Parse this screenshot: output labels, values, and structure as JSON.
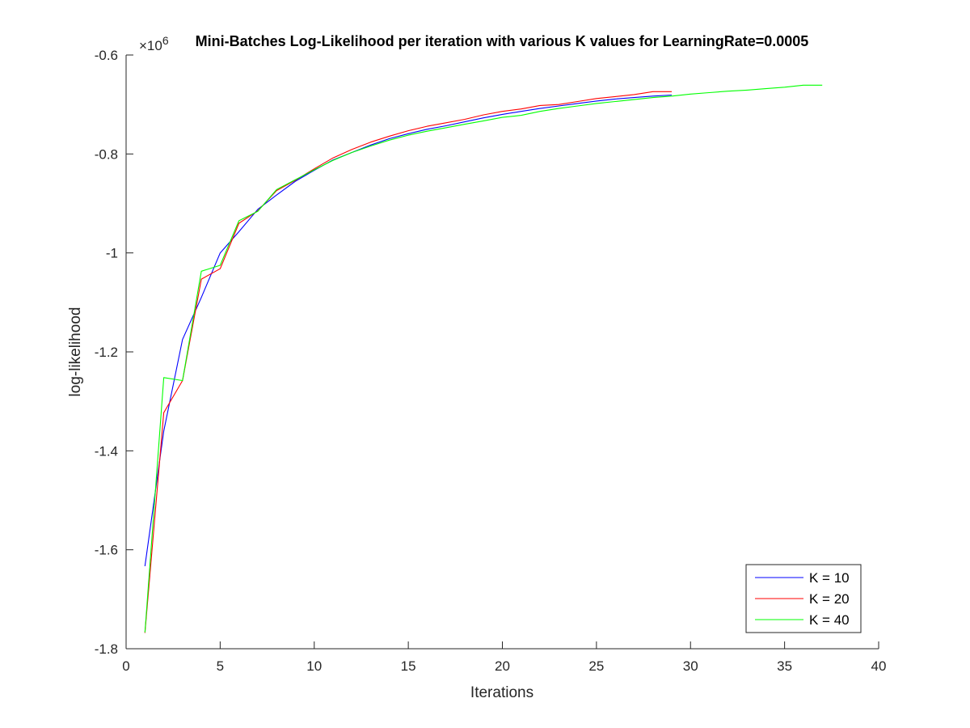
{
  "chart_data": {
    "type": "line",
    "title": "Mini-Batches Log-Likelihood per iteration with various K values for LearningRate=0.0005",
    "xlabel": "Iterations",
    "ylabel": "log-likelihood",
    "y_exponent_label": "×10",
    "y_exponent": "6",
    "xlim": [
      0,
      40
    ],
    "ylim": [
      -1.8,
      -0.6
    ],
    "x_ticks": [
      0,
      5,
      10,
      15,
      20,
      25,
      30,
      35,
      40
    ],
    "x_tick_labels": [
      "0",
      "5",
      "10",
      "15",
      "20",
      "25",
      "30",
      "35",
      "40"
    ],
    "y_ticks": [
      -1.8,
      -1.6,
      -1.4,
      -1.2,
      -1.0,
      -0.8,
      -0.6
    ],
    "y_tick_labels": [
      "-1.8",
      "-1.6",
      "-1.4",
      "-1.2",
      "-1",
      "-0.8",
      "-0.6"
    ],
    "grid": false,
    "legend_position": "bottom-right",
    "series": [
      {
        "name": "K = 10",
        "color": "#0000ff",
        "x": [
          1,
          2,
          3,
          4,
          5,
          6,
          7,
          8,
          9,
          10,
          11,
          12,
          13,
          14,
          15,
          16,
          17,
          18,
          19,
          20,
          21,
          22,
          23,
          24,
          25,
          26,
          27,
          28,
          29
        ],
        "y": [
          -1.633,
          -1.36,
          -1.175,
          -1.09,
          -1.0,
          -0.957,
          -0.912,
          -0.883,
          -0.855,
          -0.833,
          -0.812,
          -0.797,
          -0.782,
          -0.769,
          -0.759,
          -0.75,
          -0.743,
          -0.735,
          -0.727,
          -0.72,
          -0.714,
          -0.708,
          -0.703,
          -0.698,
          -0.693,
          -0.689,
          -0.686,
          -0.683,
          -0.681
        ]
      },
      {
        "name": "K = 20",
        "color": "#ff0000",
        "x": [
          1,
          2,
          3,
          4,
          5,
          6,
          7,
          8,
          9,
          10,
          11,
          12,
          13,
          14,
          15,
          16,
          17,
          18,
          19,
          20,
          21,
          22,
          23,
          24,
          25,
          26,
          27,
          28,
          29
        ],
        "y": [
          -1.768,
          -1.323,
          -1.258,
          -1.053,
          -1.032,
          -0.94,
          -0.915,
          -0.874,
          -0.853,
          -0.83,
          -0.808,
          -0.791,
          -0.776,
          -0.764,
          -0.753,
          -0.744,
          -0.737,
          -0.73,
          -0.721,
          -0.714,
          -0.709,
          -0.702,
          -0.7,
          -0.694,
          -0.688,
          -0.684,
          -0.68,
          -0.674,
          -0.674
        ]
      },
      {
        "name": "K = 40",
        "color": "#00ff00",
        "x": [
          1,
          2,
          3,
          4,
          5,
          6,
          7,
          8,
          9,
          10,
          11,
          12,
          13,
          14,
          15,
          16,
          17,
          18,
          19,
          20,
          21,
          22,
          23,
          24,
          25,
          26,
          27,
          28,
          29,
          30,
          31,
          32,
          33,
          34,
          35,
          36,
          37
        ],
        "y": [
          -1.767,
          -1.252,
          -1.258,
          -1.037,
          -1.025,
          -0.935,
          -0.916,
          -0.872,
          -0.852,
          -0.832,
          -0.813,
          -0.797,
          -0.784,
          -0.772,
          -0.762,
          -0.754,
          -0.747,
          -0.74,
          -0.733,
          -0.726,
          -0.722,
          -0.714,
          -0.708,
          -0.703,
          -0.698,
          -0.694,
          -0.69,
          -0.686,
          -0.683,
          -0.679,
          -0.676,
          -0.673,
          -0.671,
          -0.668,
          -0.665,
          -0.661,
          -0.661
        ]
      }
    ]
  }
}
